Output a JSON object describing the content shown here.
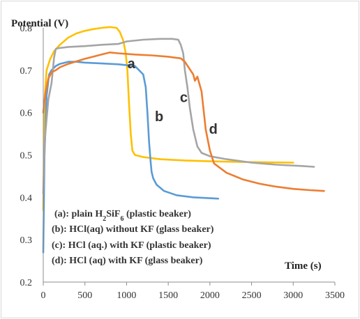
{
  "chart_data": {
    "type": "line",
    "ylabel": "Potential (V)",
    "xlabel": "Time (s)",
    "xlim": [
      0,
      3500
    ],
    "ylim": [
      0.2,
      0.8
    ],
    "x_ticks": [
      0,
      500,
      1000,
      1500,
      2000,
      2500,
      3000,
      3500
    ],
    "y_ticks": [
      0.2,
      0.3,
      0.4,
      0.5,
      0.6,
      0.7,
      0.8
    ],
    "grid": false,
    "legend": [
      {
        "prefix": "(a):  plain H",
        "sub1": "2",
        "mid": "SiF",
        "sub2": "6",
        "suffix": " (plastic beaker)"
      },
      {
        "prefix": "(b):  HCl(aq) without KF (glass beaker)"
      },
      {
        "prefix": "(c):  HCl (aq.) with KF (plastic beaker)"
      },
      {
        "prefix": "(d): HCl (aq) with KF (glass beaker)"
      }
    ],
    "series": [
      {
        "label": "a",
        "color": "#FFC000",
        "label_pos": [
          1010,
          0.705
        ],
        "x": [
          0,
          15,
          40,
          80,
          130,
          200,
          300,
          400,
          500,
          600,
          700,
          800,
          880,
          920,
          960,
          990,
          1010,
          1030,
          1050,
          1070,
          1100,
          1200,
          1400,
          1700,
          2000,
          2500,
          3000
        ],
        "y": [
          0.37,
          0.63,
          0.7,
          0.725,
          0.745,
          0.76,
          0.777,
          0.787,
          0.793,
          0.797,
          0.8,
          0.802,
          0.8,
          0.79,
          0.77,
          0.74,
          0.7,
          0.62,
          0.55,
          0.51,
          0.5,
          0.495,
          0.49,
          0.487,
          0.485,
          0.483,
          0.482
        ]
      },
      {
        "label": "b",
        "color": "#5B9BD5",
        "label_pos": [
          1340,
          0.58
        ],
        "x": [
          0,
          15,
          40,
          70,
          100,
          150,
          200,
          300,
          400,
          500,
          700,
          900,
          1100,
          1200,
          1230,
          1250,
          1270,
          1290,
          1300,
          1320,
          1360,
          1450,
          1600,
          1800,
          2100
        ],
        "y": [
          0.27,
          0.5,
          0.64,
          0.69,
          0.7,
          0.71,
          0.715,
          0.72,
          0.72,
          0.718,
          0.716,
          0.714,
          0.71,
          0.69,
          0.66,
          0.6,
          0.53,
          0.48,
          0.46,
          0.445,
          0.43,
          0.415,
          0.405,
          0.4,
          0.397
        ]
      },
      {
        "label": "c",
        "color": "#A5A5A5",
        "label_pos": [
          1640,
          0.625
        ],
        "x": [
          0,
          20,
          60,
          100,
          130,
          150,
          180,
          300,
          500,
          700,
          900,
          1000,
          1200,
          1400,
          1550,
          1620,
          1650,
          1680,
          1700,
          1730,
          1760,
          1800,
          1850,
          1900,
          2000,
          2200,
          2500,
          2800,
          3100,
          3250
        ],
        "y": [
          0.41,
          0.54,
          0.63,
          0.67,
          0.73,
          0.75,
          0.752,
          0.755,
          0.757,
          0.76,
          0.762,
          0.768,
          0.772,
          0.774,
          0.774,
          0.772,
          0.76,
          0.74,
          0.7,
          0.66,
          0.61,
          0.56,
          0.52,
          0.505,
          0.497,
          0.49,
          0.482,
          0.477,
          0.474,
          0.472
        ]
      },
      {
        "label": "d",
        "color": "#ED7D31",
        "label_pos": [
          1990,
          0.55
        ],
        "x": [
          0,
          10,
          30,
          60,
          100,
          150,
          200,
          300,
          500,
          700,
          800,
          900,
          1100,
          1300,
          1500,
          1650,
          1700,
          1750,
          1800,
          1820,
          1850,
          1900,
          1950,
          2000,
          2050,
          2200,
          2400,
          2600,
          2800,
          3000,
          3200,
          3370
        ],
        "y": [
          0.6,
          0.62,
          0.65,
          0.68,
          0.695,
          0.7,
          0.707,
          0.715,
          0.727,
          0.737,
          0.742,
          0.74,
          0.737,
          0.735,
          0.732,
          0.728,
          0.72,
          0.705,
          0.69,
          0.675,
          0.685,
          0.65,
          0.56,
          0.51,
          0.48,
          0.458,
          0.442,
          0.432,
          0.425,
          0.42,
          0.417,
          0.415
        ]
      }
    ]
  }
}
